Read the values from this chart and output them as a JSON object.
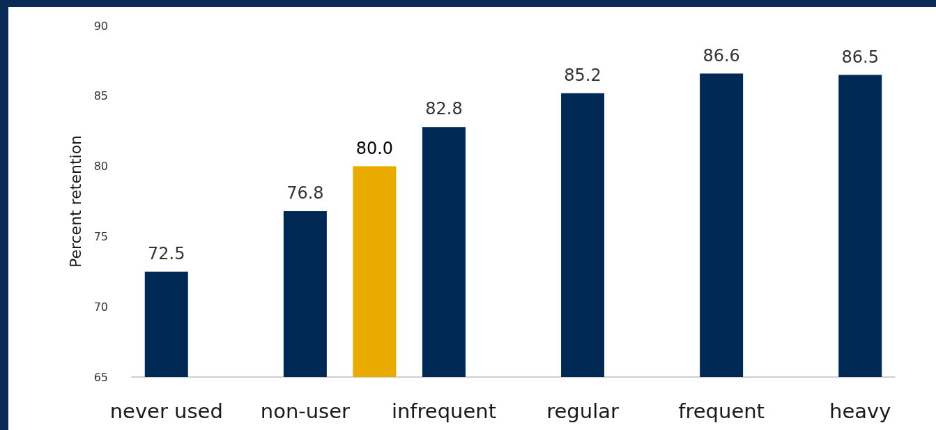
{
  "chart_data": {
    "type": "bar",
    "ylabel": "Percent retention",
    "categories": [
      "never used",
      null,
      "non-user",
      null,
      "infrequent",
      null,
      "regular",
      null,
      "frequent",
      null,
      "heavy"
    ],
    "values": [
      72.5,
      null,
      76.8,
      80.0,
      82.8,
      null,
      85.2,
      null,
      86.6,
      null,
      86.5
    ],
    "value_labels": [
      "72.5",
      null,
      "76.8",
      "80.0",
      "82.8",
      null,
      "85.2",
      null,
      "86.6",
      null,
      "86.5"
    ],
    "colors": [
      "#002855",
      "#002855",
      "#002855",
      "#eaab00",
      "#002855",
      "#002855",
      "#002855",
      "#002855",
      "#002855",
      "#002855",
      "#002855"
    ],
    "ylim": [
      65,
      90
    ],
    "yticks": [
      65,
      70,
      75,
      80,
      85,
      90
    ],
    "grid": false
  }
}
